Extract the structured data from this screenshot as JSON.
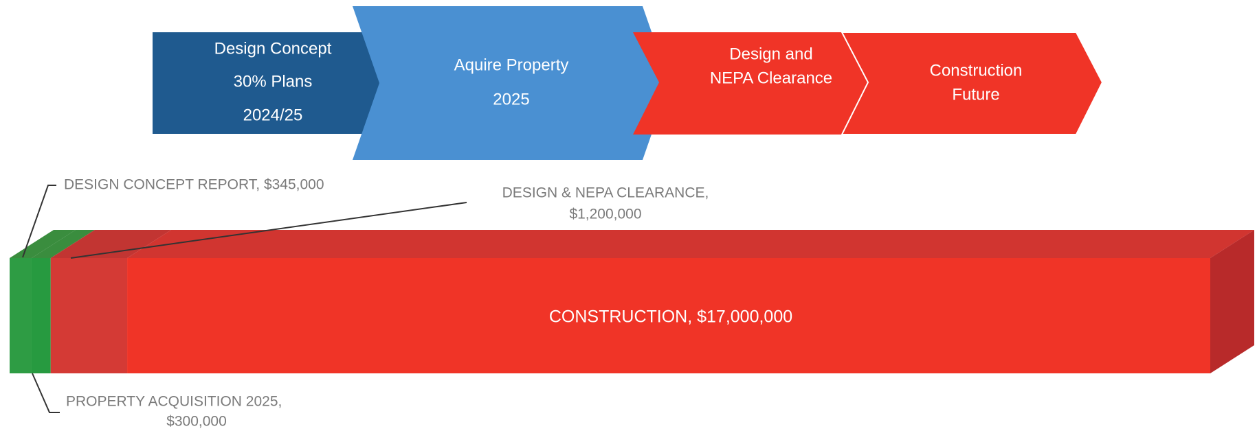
{
  "process": {
    "steps": [
      {
        "lines": [
          "Design Concept",
          "30% Plans",
          "2024/25"
        ],
        "color": "#1f5a8f"
      },
      {
        "lines": [
          "Aquire Property",
          "2025"
        ],
        "color": "#4a90d2"
      },
      {
        "lines": [
          "Design and",
          "NEPA Clearance"
        ],
        "color": "#f03427"
      },
      {
        "lines": [
          "Construction",
          "Future"
        ],
        "color": "#f03427"
      }
    ]
  },
  "chart_data": {
    "type": "bar",
    "stacked": true,
    "orientation": "horizontal",
    "series": [
      {
        "color": "#2e9c44",
        "values": [
          345000
        ],
        "value_labels": [
          [
            "DESIGN CONCEPT REPORT, $345,000"
          ]
        ]
      },
      {
        "color": "#279a40",
        "values": [
          300000
        ],
        "value_labels": [
          [
            "PROPERTY ACQUISITION 2025,",
            "$300,000"
          ]
        ]
      },
      {
        "color": "#d43a35",
        "values": [
          1200000
        ],
        "value_labels": [
          [
            "DESIGN & NEPA  CLEARANCE,",
            "$1,200,000"
          ]
        ]
      },
      {
        "color": "#f03427",
        "values": [
          17000000
        ],
        "value_labels": [
          [
            "CONSTRUCTION, $17,000,000"
          ]
        ]
      }
    ]
  }
}
